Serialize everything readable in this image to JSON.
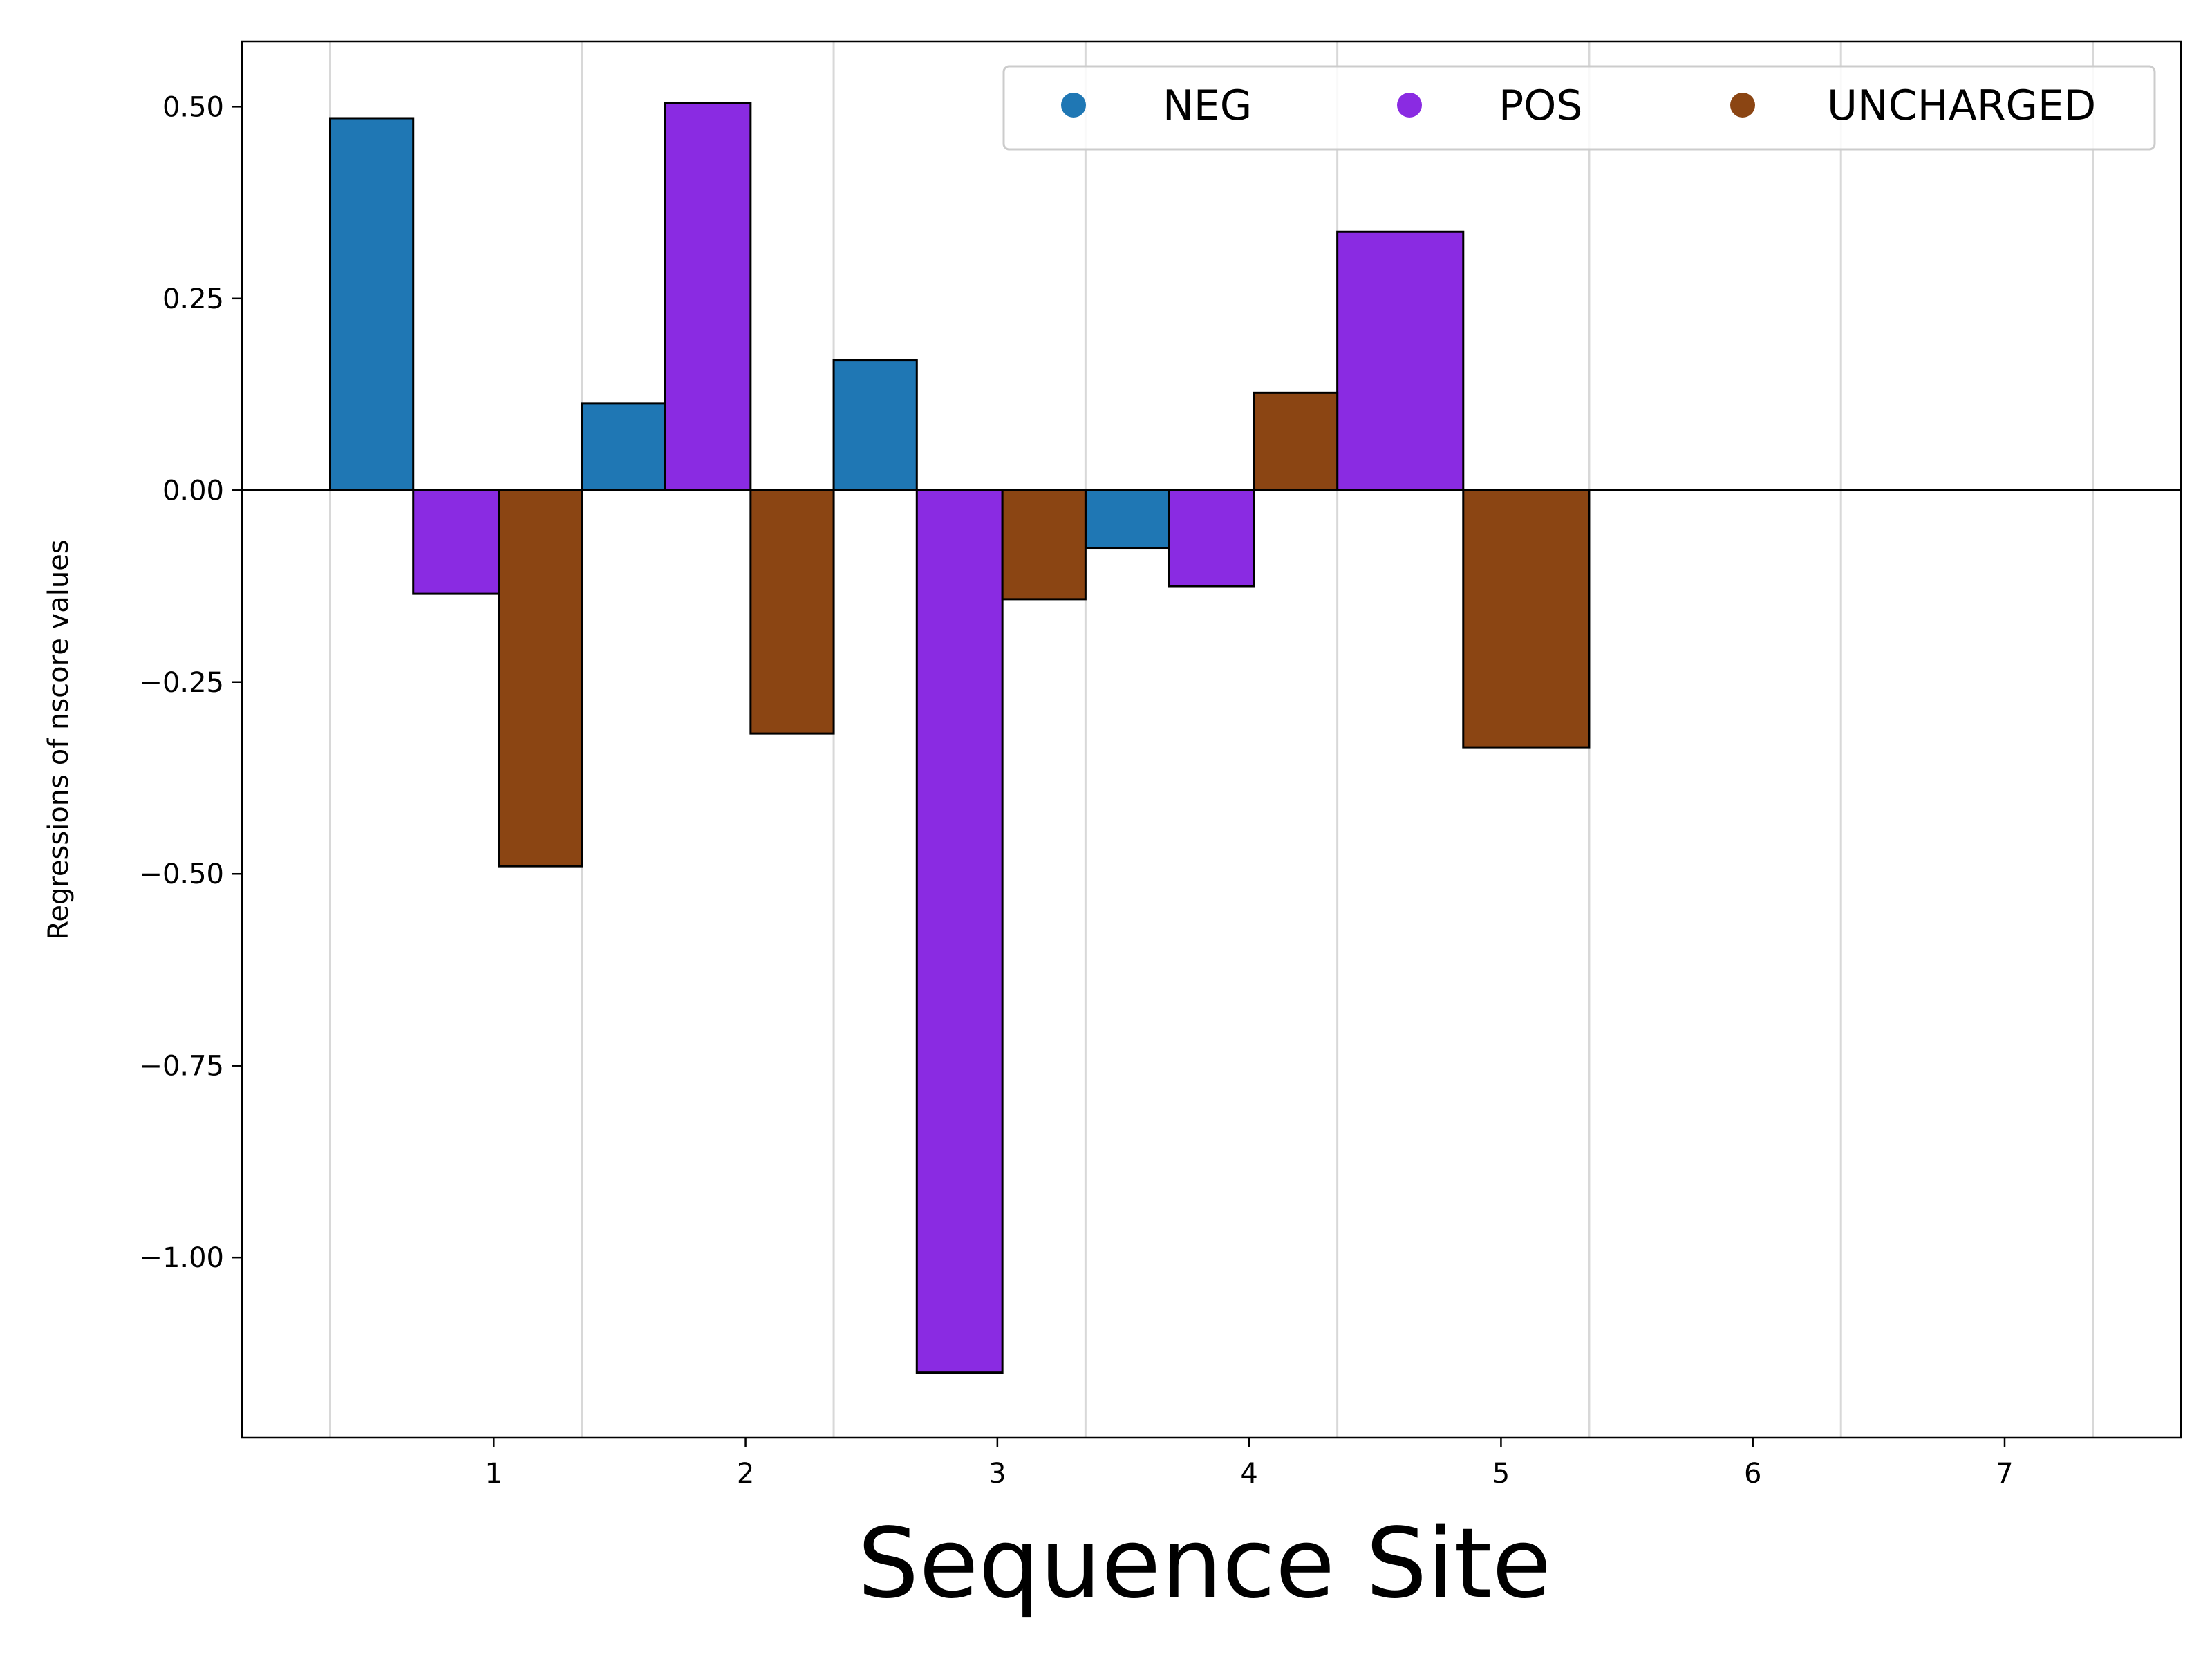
{
  "chart_data": {
    "type": "bar",
    "title": "",
    "xlabel": "Sequence Site",
    "ylabel": "Regressions of nscore values",
    "ylim": [
      -1.235,
      0.585
    ],
    "xlim": [
      0.0,
      7.7
    ],
    "xticks": [
      1,
      2,
      3,
      4,
      5,
      6,
      7
    ],
    "yticks": [
      0.5,
      0.25,
      0.0,
      -0.25,
      -0.5,
      -0.75,
      -1.0
    ],
    "ytick_labels": [
      "0.50",
      "0.25",
      "0.00",
      "−0.25",
      "−0.50",
      "−0.75",
      "−1.00"
    ],
    "grid": "vertical",
    "legend_position": "top-right",
    "series": [
      {
        "name": "NEG",
        "color": "#1f77b4",
        "bars": [
          {
            "x0": 0.35,
            "x1": 0.68,
            "value": 0.485
          },
          {
            "x0": 1.35,
            "x1": 1.68,
            "value": 0.113
          },
          {
            "x0": 2.35,
            "x1": 2.68,
            "value": 0.17
          },
          {
            "x0": 3.35,
            "x1": 3.68,
            "value": -0.075
          }
        ]
      },
      {
        "name": "POS",
        "color": "#8a2be2",
        "bars": [
          {
            "x0": 0.68,
            "x1": 1.02,
            "value": -0.135
          },
          {
            "x0": 1.68,
            "x1": 2.02,
            "value": 0.505
          },
          {
            "x0": 2.68,
            "x1": 3.02,
            "value": -1.15
          },
          {
            "x0": 3.68,
            "x1": 4.02,
            "value": -0.125
          },
          {
            "x0": 4.35,
            "x1": 4.85,
            "value": 0.337
          }
        ]
      },
      {
        "name": "UNCHARGED",
        "color": "#8b4513",
        "bars": [
          {
            "x0": 1.02,
            "x1": 1.35,
            "value": -0.49
          },
          {
            "x0": 2.02,
            "x1": 2.35,
            "value": -0.317
          },
          {
            "x0": 3.02,
            "x1": 3.35,
            "value": -0.142
          },
          {
            "x0": 4.02,
            "x1": 4.35,
            "value": 0.127
          },
          {
            "x0": 4.85,
            "x1": 5.35,
            "value": -0.335
          }
        ]
      }
    ]
  }
}
